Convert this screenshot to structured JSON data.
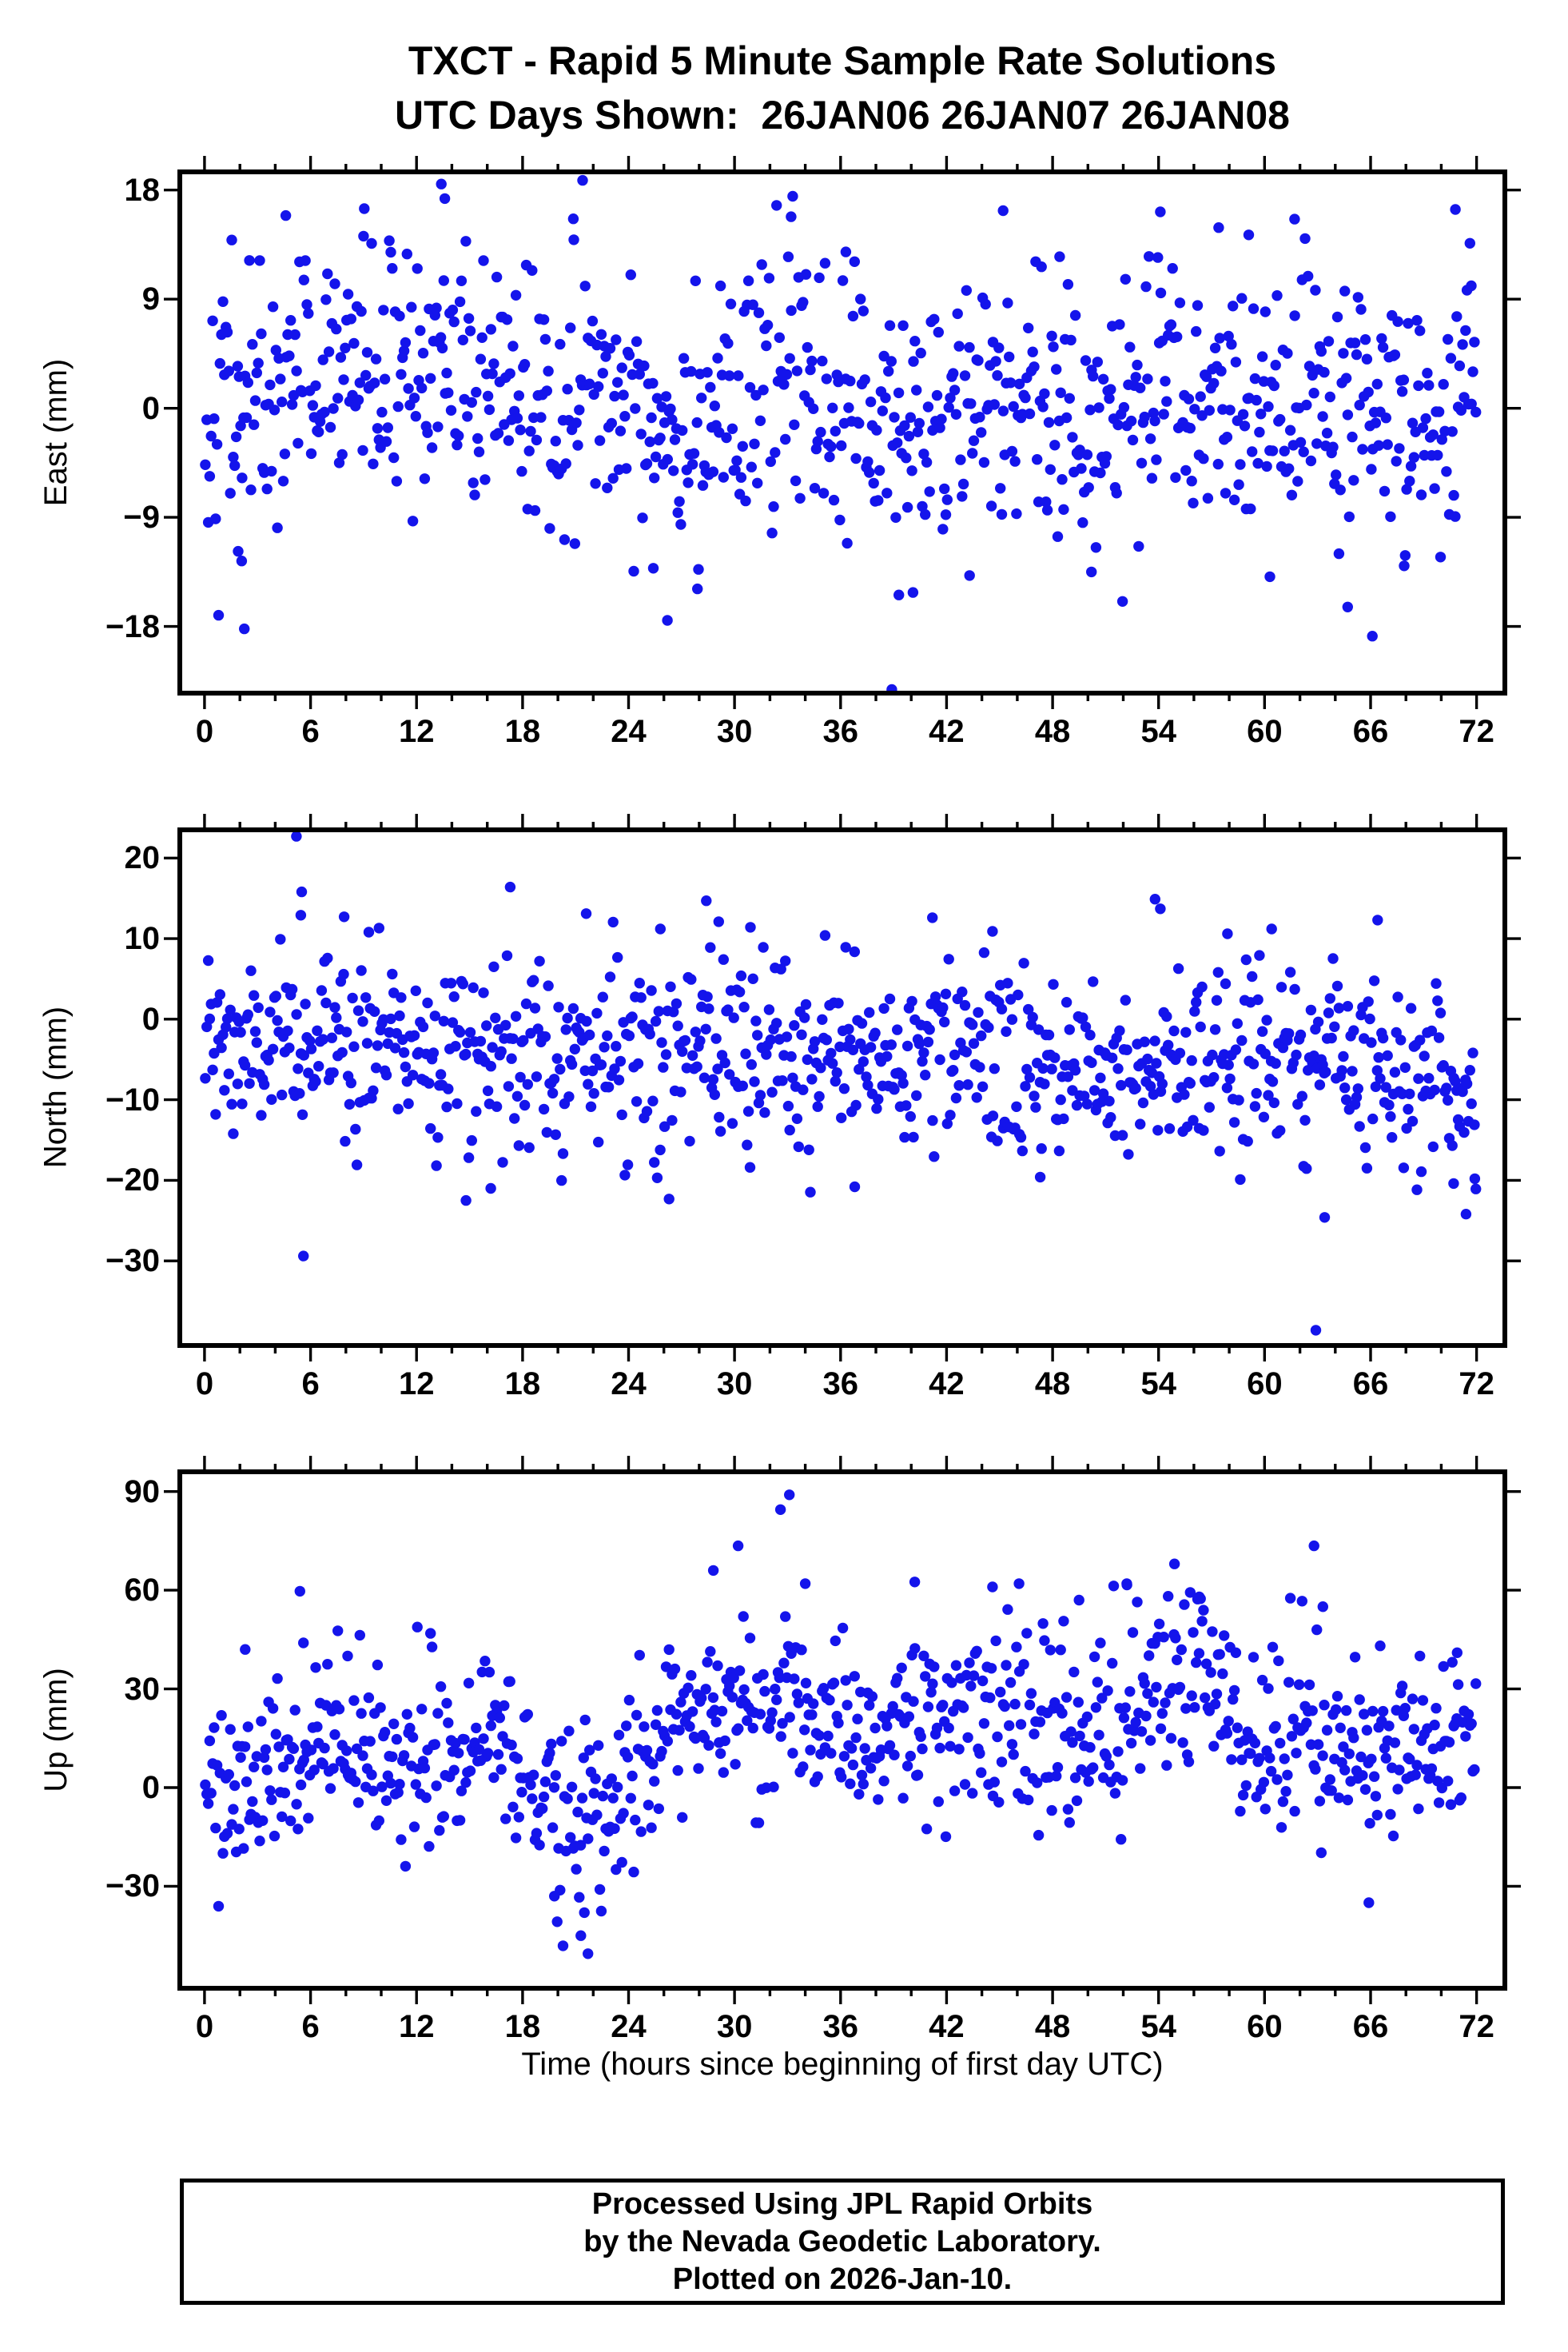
{
  "title": {
    "line1": "TXCT - Rapid 5 Minute Sample Rate Solutions",
    "line2": "UTC Days Shown:  26JAN06 26JAN07 26JAN08"
  },
  "xaxis_title": "Time (hours since beginning of first day UTC)",
  "footer": {
    "line1": "Processed Using JPL Rapid Orbits",
    "line2": "by the Nevada Geodetic Laboratory.",
    "line3": "Plotted on 2026-Jan-10."
  },
  "style": {
    "marker_color": "#1414EB",
    "axis_color": "#000000",
    "marker_radius": 6.7,
    "background": "#FFFFFF"
  },
  "chart_data": [
    {
      "type": "scatter",
      "name": "east",
      "ylabel": "East (mm)",
      "xlim": [
        -1.4,
        73.6
      ],
      "ylim": [
        -23.5,
        19.5
      ],
      "xticks": [
        0,
        6,
        12,
        18,
        24,
        30,
        36,
        42,
        48,
        54,
        60,
        66,
        72
      ],
      "x_minor_step": 2,
      "yticks": [
        -18,
        -9,
        0,
        9,
        18
      ],
      "x_units": "hours",
      "grid": false,
      "legend": false,
      "n_points": 864,
      "x_start": 0.0417,
      "x_step": 0.083333,
      "seed": 42,
      "std": 5.4,
      "mean_curve": [
        [
          0,
          0.5
        ],
        [
          3,
          1
        ],
        [
          6,
          3
        ],
        [
          9,
          3.5
        ],
        [
          12,
          2.5
        ],
        [
          15,
          2
        ],
        [
          18,
          1
        ],
        [
          21,
          1.5
        ],
        [
          24,
          0.5
        ],
        [
          27,
          -0.5
        ],
        [
          30,
          0.5
        ],
        [
          33,
          2
        ],
        [
          36,
          1
        ],
        [
          38,
          -1.5
        ],
        [
          40,
          -1.5
        ],
        [
          42,
          -1
        ],
        [
          45,
          0.5
        ],
        [
          48,
          -0.5
        ],
        [
          51,
          -0.5
        ],
        [
          54,
          0.5
        ],
        [
          57,
          -0.5
        ],
        [
          60,
          -1
        ],
        [
          63,
          -0.5
        ],
        [
          66,
          -0.5
        ],
        [
          69,
          -0.5
        ],
        [
          72,
          0.5
        ]
      ],
      "outliers": [
        [
          2.1,
          -12.6
        ],
        [
          2.25,
          -18.2
        ],
        [
          1.9,
          -11.8
        ],
        [
          4.6,
          15.9
        ],
        [
          9.0,
          14.2
        ],
        [
          13.4,
          18.5
        ],
        [
          13.6,
          17.3
        ],
        [
          21.4,
          18.8
        ],
        [
          20.9,
          13.9
        ],
        [
          26.2,
          -17.5
        ],
        [
          25.4,
          -13.2
        ],
        [
          27.9,
          -14.9
        ],
        [
          33.2,
          15.8
        ],
        [
          36.3,
          12.9
        ],
        [
          38.9,
          -23.2
        ],
        [
          39.3,
          -15.4
        ],
        [
          40.1,
          -15.2
        ],
        [
          43.3,
          -13.8
        ],
        [
          45.2,
          16.3
        ],
        [
          48.4,
          12.5
        ],
        [
          50.2,
          -13.5
        ],
        [
          54.1,
          16.2
        ],
        [
          57.4,
          14.9
        ],
        [
          59.1,
          14.3
        ],
        [
          61.7,
          15.6
        ],
        [
          60.3,
          -13.9
        ],
        [
          64.7,
          -16.4
        ],
        [
          66.1,
          -18.8
        ],
        [
          67.9,
          -13.0
        ],
        [
          70.8,
          16.4
        ],
        [
          71.7,
          10.1
        ]
      ]
    },
    {
      "type": "scatter",
      "name": "north",
      "ylabel": "North (mm)",
      "xlim": [
        -1.4,
        73.6
      ],
      "ylim": [
        -40.5,
        23.5
      ],
      "xticks": [
        0,
        6,
        12,
        18,
        24,
        30,
        36,
        42,
        48,
        54,
        60,
        66,
        72
      ],
      "x_minor_step": 2,
      "yticks": [
        -30,
        -20,
        -10,
        0,
        10,
        20
      ],
      "x_units": "hours",
      "grid": false,
      "legend": false,
      "n_points": 864,
      "x_start": 0.0417,
      "x_step": 0.083333,
      "seed": 1234,
      "std": 5.8,
      "mean_curve": [
        [
          0,
          -3.5
        ],
        [
          4,
          -4.5
        ],
        [
          8,
          -2
        ],
        [
          12,
          -2.5
        ],
        [
          16,
          -3.5
        ],
        [
          20,
          -5
        ],
        [
          24,
          -3.5
        ],
        [
          28,
          -4.5
        ],
        [
          32,
          -6
        ],
        [
          36,
          -4
        ],
        [
          40,
          -5.5
        ],
        [
          44,
          -4.5
        ],
        [
          48,
          -6.5
        ],
        [
          52,
          -5
        ],
        [
          56,
          -5.5
        ],
        [
          60,
          -4.5
        ],
        [
          64,
          -5
        ],
        [
          68,
          -5.5
        ],
        [
          72,
          -9
        ]
      ],
      "outliers": [
        [
          5.2,
          22.7
        ],
        [
          5.5,
          15.8
        ],
        [
          5.45,
          12.9
        ],
        [
          5.6,
          -29.4
        ],
        [
          7.9,
          12.7
        ],
        [
          9.3,
          10.8
        ],
        [
          17.3,
          16.4
        ],
        [
          14.8,
          -22.5
        ],
        [
          16.2,
          -21.0
        ],
        [
          21.6,
          13.1
        ],
        [
          25.8,
          11.2
        ],
        [
          28.4,
          14.7
        ],
        [
          29.1,
          12.1
        ],
        [
          30.9,
          11.4
        ],
        [
          36.8,
          -20.8
        ],
        [
          41.2,
          12.6
        ],
        [
          44.6,
          10.9
        ],
        [
          47.3,
          -19.6
        ],
        [
          53.8,
          14.9
        ],
        [
          54.1,
          13.7
        ],
        [
          57.9,
          10.6
        ],
        [
          60.4,
          11.2
        ],
        [
          62.9,
          -38.6
        ],
        [
          63.4,
          -24.6
        ],
        [
          66.4,
          12.3
        ],
        [
          70.7,
          -20.4
        ],
        [
          71.4,
          -24.2
        ],
        [
          71.9,
          -19.8
        ]
      ]
    },
    {
      "type": "scatter",
      "name": "up",
      "ylabel": "Up (mm)",
      "xlim": [
        -1.4,
        73.6
      ],
      "ylim": [
        -61,
        96
      ],
      "xticks": [
        0,
        6,
        12,
        18,
        24,
        30,
        36,
        42,
        48,
        54,
        60,
        66,
        72
      ],
      "x_minor_step": 2,
      "yticks": [
        -30,
        0,
        30,
        60,
        90
      ],
      "x_units": "hours",
      "grid": false,
      "legend": false,
      "n_points": 864,
      "x_start": 0.0417,
      "x_step": 0.083333,
      "seed": 2024,
      "std": 14,
      "mean_curve": [
        [
          0,
          3
        ],
        [
          4,
          8
        ],
        [
          8,
          12
        ],
        [
          12,
          10
        ],
        [
          16,
          12
        ],
        [
          18,
          5
        ],
        [
          20,
          -8
        ],
        [
          22,
          -12
        ],
        [
          24,
          2
        ],
        [
          26,
          18
        ],
        [
          28,
          20
        ],
        [
          30,
          22
        ],
        [
          33,
          26
        ],
        [
          36,
          12
        ],
        [
          39,
          18
        ],
        [
          42,
          22
        ],
        [
          45,
          20
        ],
        [
          48,
          18
        ],
        [
          51,
          22
        ],
        [
          54,
          32
        ],
        [
          56,
          34
        ],
        [
          58,
          20
        ],
        [
          60,
          12
        ],
        [
          62,
          20
        ],
        [
          64,
          10
        ],
        [
          66,
          8
        ],
        [
          68,
          10
        ],
        [
          70,
          14
        ],
        [
          72,
          18
        ]
      ],
      "outliers": [
        [
          2.3,
          42
        ],
        [
          5.4,
          59.7
        ],
        [
          5.6,
          44
        ],
        [
          8.1,
          40
        ],
        [
          19.8,
          -33
        ],
        [
          21.3,
          -45
        ],
        [
          21.7,
          -50.5
        ],
        [
          21.5,
          -38
        ],
        [
          28.8,
          66
        ],
        [
          30.2,
          73.5
        ],
        [
          30.5,
          52
        ],
        [
          32.6,
          84.5
        ],
        [
          33.1,
          89
        ],
        [
          34,
          62
        ],
        [
          40.2,
          62.5
        ],
        [
          44.6,
          61
        ],
        [
          46.1,
          62
        ],
        [
          49.5,
          57
        ],
        [
          52.2,
          62
        ],
        [
          54.9,
          68
        ],
        [
          56.3,
          58
        ],
        [
          62.8,
          73.5
        ],
        [
          63.3,
          55
        ],
        [
          65.9,
          -35
        ],
        [
          70.9,
          41
        ]
      ]
    }
  ]
}
